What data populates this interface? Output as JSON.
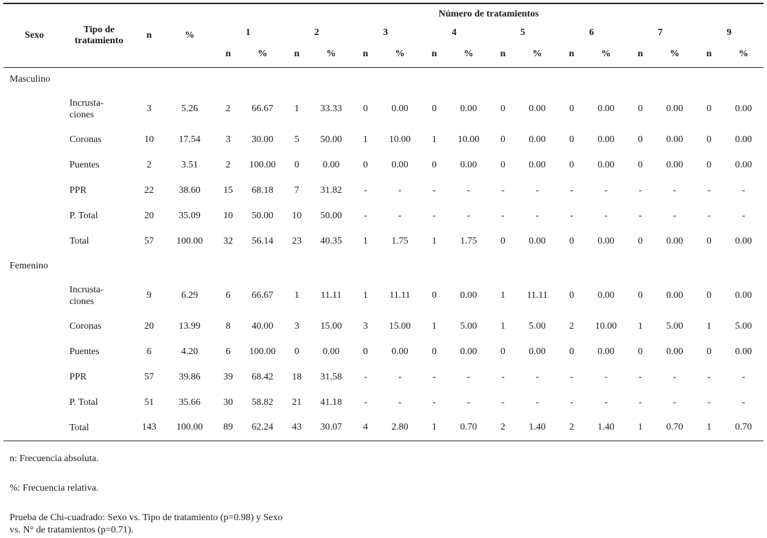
{
  "table": {
    "group_header": "Número de tratamientos",
    "headers": {
      "sexo": "Sexo",
      "tipo": "Tipo de\ntratamiento",
      "n": "n",
      "pct": "%"
    },
    "number_labels": [
      "1",
      "2",
      "3",
      "4",
      "5",
      "6",
      "7",
      "9"
    ],
    "sub_headers": {
      "n": "n",
      "pct": "%"
    },
    "sections": [
      {
        "sexo": "Masculino",
        "rows": [
          {
            "label": "Incrusta-\nciones",
            "n": "3",
            "pct": "5.26",
            "cells": [
              "2",
              "66.67",
              "1",
              "33.33",
              "0",
              "0.00",
              "0",
              "0.00",
              "0",
              "0.00",
              "0",
              "0.00",
              "0",
              "0.00",
              "0",
              "0.00"
            ]
          },
          {
            "label": "Coronas",
            "n": "10",
            "pct": "17.54",
            "cells": [
              "3",
              "30.00",
              "5",
              "50.00",
              "1",
              "10.00",
              "1",
              "10.00",
              "0",
              "0.00",
              "0",
              "0.00",
              "0",
              "0.00",
              "0",
              "0.00"
            ]
          },
          {
            "label": "Puentes",
            "n": "2",
            "pct": "3.51",
            "cells": [
              "2",
              "100.00",
              "0",
              "0.00",
              "0",
              "0.00",
              "0",
              "0.00",
              "0",
              "0.00",
              "0",
              "0.00",
              "0",
              "0.00",
              "0",
              "0.00"
            ]
          },
          {
            "label": "PPR",
            "n": "22",
            "pct": "38.60",
            "cells": [
              "15",
              "68.18",
              "7",
              "31.82",
              "-",
              "-",
              "-",
              "-",
              "-",
              "-",
              "-",
              "-",
              "-",
              "-",
              "-",
              "-"
            ]
          },
          {
            "label": "P. Total",
            "n": "20",
            "pct": "35.09",
            "cells": [
              "10",
              "50.00",
              "10",
              "50.00",
              "-",
              "-",
              "-",
              "-",
              "-",
              "-",
              "-",
              "-",
              "-",
              "-",
              "-",
              "-"
            ]
          },
          {
            "label": "Total",
            "n": "57",
            "pct": "100.00",
            "cells": [
              "32",
              "56.14",
              "23",
              "40.35",
              "1",
              "1.75",
              "1",
              "1.75",
              "0",
              "0.00",
              "0",
              "0.00",
              "0",
              "0.00",
              "0",
              "0.00"
            ]
          }
        ]
      },
      {
        "sexo": "Femenino",
        "rows": [
          {
            "label": "Incrusta-\nciones",
            "n": "9",
            "pct": "6.29",
            "cells": [
              "6",
              "66.67",
              "1",
              "11.11",
              "1",
              "11.11",
              "0",
              "0.00",
              "1",
              "11.11",
              "0",
              "0.00",
              "0",
              "0.00",
              "0",
              "0.00"
            ]
          },
          {
            "label": "Coronas",
            "n": "20",
            "pct": "13.99",
            "cells": [
              "8",
              "40.00",
              "3",
              "15.00",
              "3",
              "15.00",
              "1",
              "5.00",
              "1",
              "5.00",
              "2",
              "10.00",
              "1",
              "5.00",
              "1",
              "5.00"
            ]
          },
          {
            "label": "Puentes",
            "n": "6",
            "pct": "4.20",
            "cells": [
              "6",
              "100.00",
              "0",
              "0.00",
              "0",
              "0.00",
              "0",
              "0.00",
              "0",
              "0.00",
              "0",
              "0.00",
              "0",
              "0.00",
              "0",
              "0.00"
            ]
          },
          {
            "label": "PPR",
            "n": "57",
            "pct": "39.86",
            "cells": [
              "39",
              "68.42",
              "18",
              "31.58",
              "-",
              "-",
              "-",
              "-",
              "-",
              "-",
              "-",
              "-",
              "-",
              "-",
              "-",
              "-"
            ]
          },
          {
            "label": "P. Total",
            "n": "51",
            "pct": "35.66",
            "cells": [
              "30",
              "58.82",
              "21",
              "41.18",
              "-",
              "-",
              "-",
              "-",
              "-",
              "-",
              "-",
              "-",
              "-",
              "-",
              "-",
              "-"
            ]
          },
          {
            "label": "Total",
            "n": "143",
            "pct": "100.00",
            "cells": [
              "89",
              "62.24",
              "43",
              "30.07",
              "4",
              "2.80",
              "1",
              "0.70",
              "2",
              "1.40",
              "2",
              "1.40",
              "1",
              "0.70",
              "1",
              "0.70"
            ]
          }
        ]
      }
    ]
  },
  "footnotes": [
    "n: Frecuencia absoluta.",
    "%: Frecuencia relativa.",
    "Prueba de Chi-cuadrado: Sexo vs. Tipo de tratamiento (p=0.98) y Sexo\nvs. N° de tratamientos (p=0.71)."
  ],
  "colors": {
    "text": "#1a1a1a",
    "rule": "#2b2b2b",
    "background": "#ffffff"
  }
}
